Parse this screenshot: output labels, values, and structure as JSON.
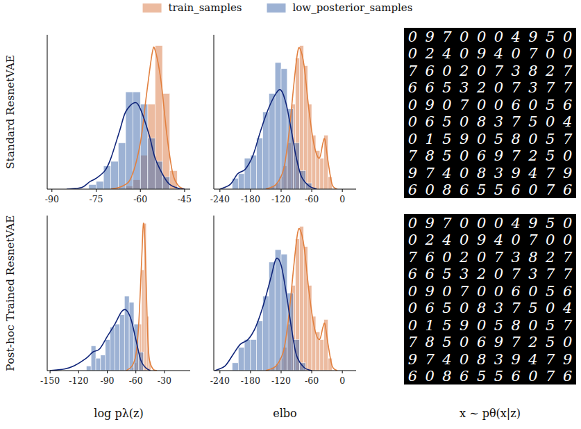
{
  "chart_data": [
    {
      "type": "histogram",
      "ylabel": "Standard ResnetVAE",
      "legend": "top",
      "tick_labels": "x",
      "xlim": [
        -91.6,
        -43.1
      ],
      "xticks": [
        -90,
        -75,
        -60,
        -45
      ],
      "ylim": [
        0,
        1
      ],
      "yticks": [],
      "series": [
        {
          "name": "train_samples",
          "type": "bar",
          "color": "#dd8452",
          "bins": [
            -65,
            -62.5,
            -60,
            -57.5,
            -55,
            -52.5,
            -50,
            -47.5
          ],
          "values": [
            0.02,
            0.06,
            0.22,
            0.55,
            0.93,
            0.62,
            0.12
          ]
        },
        {
          "name": "low_posterior_samples",
          "type": "bar",
          "color": "#4c72b0",
          "bins": [
            -77.5,
            -75,
            -72.5,
            -70,
            -67.5,
            -65,
            -62.5,
            -60,
            -57.5,
            -55,
            -52.5,
            -50
          ],
          "values": [
            0.03,
            0.05,
            0.15,
            0.18,
            0.3,
            0.63,
            0.63,
            0.55,
            0.33,
            0.18,
            0.08
          ]
        },
        {
          "type": "line",
          "color": "#e2803f",
          "x": [
            -70,
            -66,
            -63,
            -60,
            -58,
            -56,
            -55,
            -53,
            -51,
            -49,
            -47,
            -45
          ],
          "values": [
            0,
            0.02,
            0.08,
            0.3,
            0.6,
            0.88,
            0.9,
            0.7,
            0.35,
            0.1,
            0.02,
            0
          ]
        },
        {
          "type": "line",
          "color": "#10257a",
          "x": [
            -85,
            -80,
            -77,
            -75,
            -72,
            -70,
            -67,
            -65,
            -62,
            -60,
            -57,
            -55,
            -52,
            -50,
            -47,
            -45
          ],
          "values": [
            0,
            0.01,
            0.05,
            0.07,
            0.12,
            0.2,
            0.38,
            0.5,
            0.56,
            0.52,
            0.35,
            0.2,
            0.08,
            0.03,
            0.005,
            0
          ]
        }
      ]
    },
    {
      "type": "histogram",
      "tick_labels": "x",
      "xlim": [
        -252,
        27
      ],
      "xticks": [
        -240,
        -180,
        -120,
        -60,
        0
      ],
      "ylim": [
        0,
        1
      ],
      "yticks": [],
      "series": [
        {
          "type": "bar",
          "color": "#dd8452",
          "bins": [
            -140,
            -132,
            -124,
            -116,
            -108,
            -100,
            -92,
            -84,
            -76,
            -68,
            -60,
            -52,
            -44,
            -36,
            -28,
            -20
          ],
          "values": [
            0.02,
            0.04,
            0.08,
            0.15,
            0.3,
            0.55,
            0.85,
            0.93,
            0.8,
            0.55,
            0.35,
            0.25,
            0.2,
            0.35,
            0.08
          ]
        },
        {
          "type": "bar",
          "color": "#4c72b0",
          "bins": [
            -216,
            -204,
            -192,
            -180,
            -168,
            -156,
            -144,
            -132,
            -120,
            -108,
            -96,
            -84,
            -72,
            -60
          ],
          "values": [
            0.07,
            0.1,
            0.2,
            0.22,
            0.33,
            0.5,
            0.62,
            0.82,
            0.78,
            0.52,
            0.3,
            0.12,
            0.04
          ]
        },
        {
          "type": "line",
          "color": "#e2803f",
          "x": [
            -150,
            -130,
            -115,
            -105,
            -95,
            -88,
            -83,
            -75,
            -65,
            -55,
            -45,
            -38,
            -34,
            -28,
            -20,
            -10
          ],
          "values": [
            0,
            0.03,
            0.13,
            0.35,
            0.68,
            0.88,
            0.91,
            0.8,
            0.5,
            0.28,
            0.2,
            0.3,
            0.32,
            0.18,
            0.03,
            0
          ]
        },
        {
          "type": "line",
          "color": "#10257a",
          "x": [
            -240,
            -220,
            -205,
            -190,
            -175,
            -160,
            -145,
            -130,
            -120,
            -110,
            -100,
            -90,
            -80,
            -65,
            -50
          ],
          "values": [
            0,
            0.03,
            0.1,
            0.13,
            0.22,
            0.38,
            0.52,
            0.62,
            0.64,
            0.55,
            0.38,
            0.2,
            0.08,
            0.02,
            0
          ]
        }
      ]
    },
    {
      "type": "histogram",
      "ylabel": "Post-hoc Trained ResnetVAE",
      "xlabel": "log pλ(z)",
      "tick_labels": "x",
      "xlim": [
        -153,
        -3
      ],
      "xticks": [
        -150,
        -120,
        -90,
        -60,
        -30
      ],
      "ylim": [
        0,
        1
      ],
      "yticks": [],
      "series": [
        {
          "type": "bar",
          "color": "#dd8452",
          "bins": [
            -64,
            -61.5,
            -59,
            -56.5,
            -54,
            -51.5,
            -49,
            -46.5,
            -44
          ],
          "values": [
            0.02,
            0.05,
            0.12,
            0.3,
            0.65,
            0.95,
            0.35,
            0.06
          ]
        },
        {
          "type": "bar",
          "color": "#4c72b0",
          "bins": [
            -112,
            -107,
            -102,
            -97,
            -92,
            -87,
            -82,
            -77,
            -72,
            -67,
            -62,
            -57,
            -52
          ],
          "values": [
            0.03,
            0.16,
            0.08,
            0.1,
            0.2,
            0.28,
            0.3,
            0.36,
            0.48,
            0.44,
            0.3,
            0.12
          ]
        },
        {
          "type": "line",
          "color": "#e2803f",
          "x": [
            -70,
            -64,
            -60,
            -57,
            -54,
            -52,
            -50,
            -48,
            -46,
            -42,
            -38
          ],
          "values": [
            0,
            0.03,
            0.1,
            0.3,
            0.7,
            0.95,
            0.75,
            0.3,
            0.08,
            0.01,
            0
          ]
        },
        {
          "type": "line",
          "color": "#10257a",
          "x": [
            -150,
            -135,
            -125,
            -112,
            -105,
            -98,
            -90,
            -82,
            -75,
            -70,
            -65,
            -60,
            -55,
            -50,
            -45
          ],
          "values": [
            0,
            0.01,
            0.03,
            0.08,
            0.12,
            0.14,
            0.22,
            0.3,
            0.38,
            0.39,
            0.33,
            0.2,
            0.07,
            0.02,
            0
          ]
        }
      ]
    },
    {
      "type": "histogram",
      "xlabel": "elbo",
      "tick_labels": "x",
      "xlim": [
        -252,
        27
      ],
      "xticks": [
        -240,
        -180,
        -120,
        -60,
        0
      ],
      "ylim": [
        0,
        1
      ],
      "yticks": [],
      "series": [
        {
          "type": "bar",
          "color": "#dd8452",
          "bins": [
            -140,
            -132,
            -124,
            -116,
            -108,
            -100,
            -92,
            -84,
            -76,
            -68,
            -60,
            -52,
            -44,
            -36,
            -28,
            -20
          ],
          "values": [
            0.02,
            0.04,
            0.08,
            0.15,
            0.3,
            0.55,
            0.85,
            0.93,
            0.8,
            0.55,
            0.35,
            0.25,
            0.2,
            0.33,
            0.08
          ]
        },
        {
          "type": "bar",
          "color": "#4c72b0",
          "bins": [
            -216,
            -204,
            -192,
            -180,
            -168,
            -156,
            -144,
            -132,
            -120,
            -108,
            -96,
            -84,
            -72
          ],
          "values": [
            0.05,
            0.15,
            0.2,
            0.2,
            0.32,
            0.48,
            0.7,
            0.78,
            0.75,
            0.5,
            0.2,
            0.05
          ]
        },
        {
          "type": "line",
          "color": "#e2803f",
          "x": [
            -150,
            -130,
            -115,
            -105,
            -95,
            -88,
            -83,
            -75,
            -65,
            -55,
            -45,
            -38,
            -34,
            -28,
            -20,
            -10
          ],
          "values": [
            0,
            0.03,
            0.13,
            0.35,
            0.68,
            0.88,
            0.91,
            0.8,
            0.5,
            0.28,
            0.2,
            0.28,
            0.3,
            0.17,
            0.03,
            0
          ]
        },
        {
          "type": "line",
          "color": "#10257a",
          "x": [
            -250,
            -230,
            -215,
            -200,
            -185,
            -170,
            -155,
            -140,
            -130,
            -120,
            -110,
            -100,
            -90,
            -75,
            -60
          ],
          "values": [
            0,
            0.03,
            0.1,
            0.17,
            0.2,
            0.28,
            0.42,
            0.6,
            0.72,
            0.68,
            0.5,
            0.28,
            0.1,
            0.02,
            0
          ]
        }
      ]
    }
  ],
  "image_panels": [
    {
      "rows": [
        "0970004950",
        "0240940700",
        "7602073827",
        "6653207377",
        "0907006056",
        "0650837504",
        "0159058057",
        "7850697250",
        "9740839479",
        "6086556076"
      ]
    },
    {
      "rows": [
        "0970004950",
        "0240940700",
        "7602073827",
        "6653207377",
        "0907006056",
        "0650837504",
        "0159058057",
        "7850697250",
        "9740839479",
        "6086556076"
      ]
    }
  ],
  "image_caption": "x ∼ pθ(x|z)"
}
